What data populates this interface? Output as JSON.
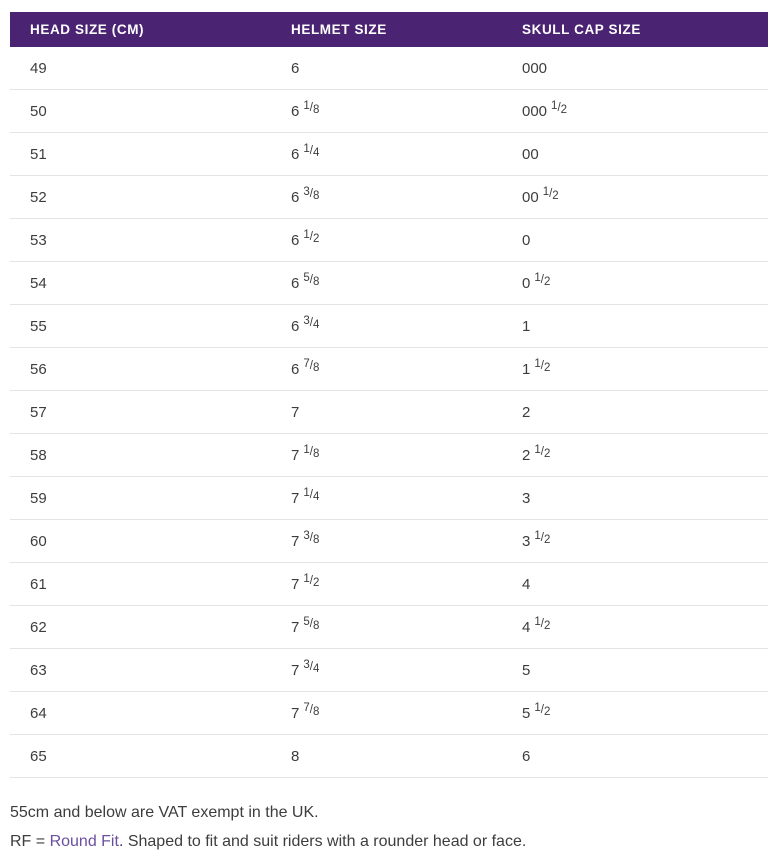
{
  "table": {
    "columns": [
      "HEAD SIZE (CM)",
      "HELMET SIZE",
      "SKULL CAP SIZE"
    ],
    "rows": [
      {
        "head_cm": "49",
        "helmet": {
          "whole": "6",
          "frac_num": "",
          "frac_den": ""
        },
        "skull": {
          "whole": "000",
          "frac_num": "",
          "frac_den": ""
        }
      },
      {
        "head_cm": "50",
        "helmet": {
          "whole": "6",
          "frac_num": "1",
          "frac_den": "8"
        },
        "skull": {
          "whole": "000",
          "frac_num": "1",
          "frac_den": "2"
        }
      },
      {
        "head_cm": "51",
        "helmet": {
          "whole": "6",
          "frac_num": "1",
          "frac_den": "4"
        },
        "skull": {
          "whole": "00",
          "frac_num": "",
          "frac_den": ""
        }
      },
      {
        "head_cm": "52",
        "helmet": {
          "whole": "6",
          "frac_num": "3",
          "frac_den": "8"
        },
        "skull": {
          "whole": "00",
          "frac_num": "1",
          "frac_den": "2"
        }
      },
      {
        "head_cm": "53",
        "helmet": {
          "whole": "6",
          "frac_num": "1",
          "frac_den": "2"
        },
        "skull": {
          "whole": "0",
          "frac_num": "",
          "frac_den": ""
        }
      },
      {
        "head_cm": "54",
        "helmet": {
          "whole": "6",
          "frac_num": "5",
          "frac_den": "8"
        },
        "skull": {
          "whole": "0",
          "frac_num": "1",
          "frac_den": "2"
        }
      },
      {
        "head_cm": "55",
        "helmet": {
          "whole": "6",
          "frac_num": "3",
          "frac_den": "4"
        },
        "skull": {
          "whole": "1",
          "frac_num": "",
          "frac_den": ""
        }
      },
      {
        "head_cm": "56",
        "helmet": {
          "whole": "6",
          "frac_num": "7",
          "frac_den": "8"
        },
        "skull": {
          "whole": "1",
          "frac_num": "1",
          "frac_den": "2"
        }
      },
      {
        "head_cm": "57",
        "helmet": {
          "whole": "7",
          "frac_num": "",
          "frac_den": ""
        },
        "skull": {
          "whole": "2",
          "frac_num": "",
          "frac_den": ""
        }
      },
      {
        "head_cm": "58",
        "helmet": {
          "whole": "7",
          "frac_num": "1",
          "frac_den": "8"
        },
        "skull": {
          "whole": "2",
          "frac_num": "1",
          "frac_den": "2"
        }
      },
      {
        "head_cm": "59",
        "helmet": {
          "whole": "7",
          "frac_num": "1",
          "frac_den": "4"
        },
        "skull": {
          "whole": "3",
          "frac_num": "",
          "frac_den": ""
        }
      },
      {
        "head_cm": "60",
        "helmet": {
          "whole": "7",
          "frac_num": "3",
          "frac_den": "8"
        },
        "skull": {
          "whole": "3",
          "frac_num": "1",
          "frac_den": "2"
        }
      },
      {
        "head_cm": "61",
        "helmet": {
          "whole": "7",
          "frac_num": "1",
          "frac_den": "2"
        },
        "skull": {
          "whole": "4",
          "frac_num": "",
          "frac_den": ""
        }
      },
      {
        "head_cm": "62",
        "helmet": {
          "whole": "7",
          "frac_num": "5",
          "frac_den": "8"
        },
        "skull": {
          "whole": "4",
          "frac_num": "1",
          "frac_den": "2"
        }
      },
      {
        "head_cm": "63",
        "helmet": {
          "whole": "7",
          "frac_num": "3",
          "frac_den": "4"
        },
        "skull": {
          "whole": "5",
          "frac_num": "",
          "frac_den": ""
        }
      },
      {
        "head_cm": "64",
        "helmet": {
          "whole": "7",
          "frac_num": "7",
          "frac_den": "8"
        },
        "skull": {
          "whole": "5",
          "frac_num": "1",
          "frac_den": "2"
        }
      },
      {
        "head_cm": "65",
        "helmet": {
          "whole": "8",
          "frac_num": "",
          "frac_den": ""
        },
        "skull": {
          "whole": "6",
          "frac_num": "",
          "frac_den": ""
        }
      }
    ]
  },
  "notes": {
    "vat_note": "55cm and below are VAT exempt in the UK.",
    "rf_prefix": "RF = ",
    "rf_link": "Round Fit",
    "rf_suffix": ". Shaped to fit and suit riders with a rounder head or face."
  },
  "colors": {
    "header_bg": "#4A2373",
    "header_text": "#FFFFFF",
    "body_text": "#3D3D3D",
    "row_border": "#E4E4E4",
    "link": "#6B4FA1",
    "background": "#FFFFFF"
  }
}
